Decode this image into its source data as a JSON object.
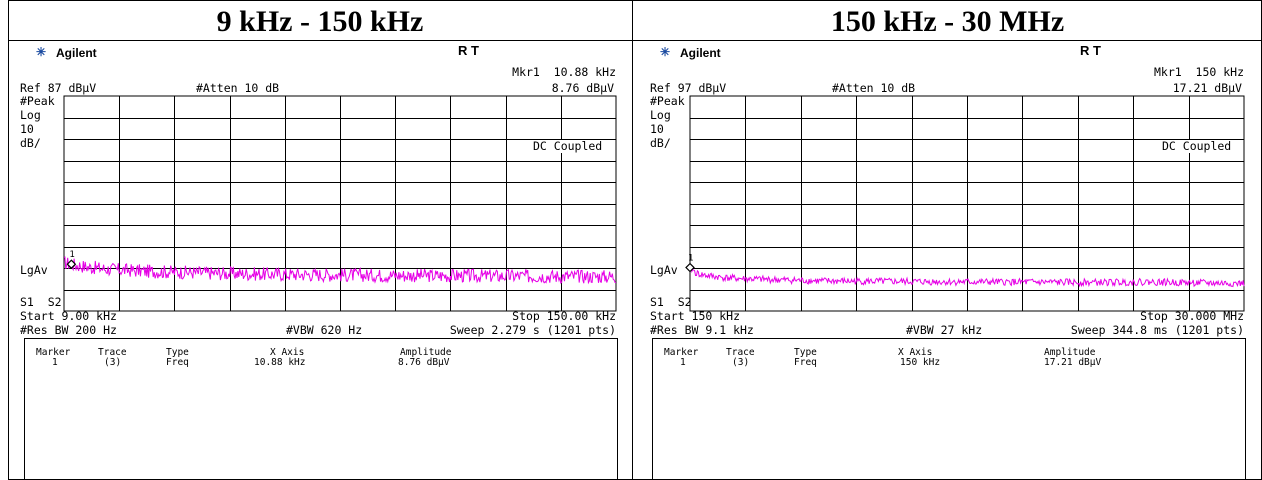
{
  "panels": [
    {
      "title": "9 kHz - 150 kHz",
      "brand": "Agilent",
      "mode_indicators": "R  T",
      "marker_readout": "Mkr1  10.88 kHz",
      "marker_amplitude": "8.76 dBμV",
      "ref_level": "Ref 87 dBμV",
      "attenuation": "#Atten 10 dB",
      "detector": "#Peak",
      "scale_type": "Log",
      "scale_value": "10",
      "scale_unit": "dB/",
      "coupling": "DC Coupled",
      "averaging": "LgAv",
      "sweep_labels": "S1  S2",
      "start_freq": "Start 9.00 kHz",
      "stop_freq": "Stop 150.00 kHz",
      "rbw": "#Res BW 200 Hz",
      "vbw": "#VBW 620 Hz",
      "sweep": "Sweep 2.279 s (1201 pts)",
      "marker_table": {
        "headers": [
          "Marker",
          "Trace",
          "Type",
          "X Axis",
          "Amplitude"
        ],
        "row": [
          "1",
          "(3)",
          "Freq",
          "10.88 kHz",
          "8.76 dBμV"
        ]
      },
      "marker_label": "1"
    },
    {
      "title": "150 kHz - 30 MHz",
      "brand": "Agilent",
      "mode_indicators": "R  T",
      "marker_readout": "Mkr1  150 kHz",
      "marker_amplitude": "17.21 dBμV",
      "ref_level": "Ref 97 dBμV",
      "attenuation": "#Atten 10 dB",
      "detector": "#Peak",
      "scale_type": "Log",
      "scale_value": "10",
      "scale_unit": "dB/",
      "coupling": "DC Coupled",
      "averaging": "LgAv",
      "sweep_labels": "S1  S2",
      "start_freq": "Start 150 kHz",
      "stop_freq": "Stop 30.000 MHz",
      "rbw": "#Res BW 9.1 kHz",
      "vbw": "#VBW 27 kHz",
      "sweep": "Sweep 344.8 ms (1201 pts)",
      "marker_table": {
        "headers": [
          "Marker",
          "Trace",
          "Type",
          "X Axis",
          "Amplitude"
        ],
        "row": [
          "1",
          "(3)",
          "Freq",
          "150 kHz",
          "17.21 dBμV"
        ]
      },
      "marker_label": "1"
    }
  ],
  "chart_data": [
    {
      "type": "line",
      "title": "9 kHz - 150 kHz",
      "x_unit": "kHz",
      "y_unit": "dBμV",
      "xlim": [
        9.0,
        150.0
      ],
      "ylim": [
        -13,
        87
      ],
      "grid": true,
      "trace_color": "#e600e6",
      "series": [
        {
          "x": [
            9.0,
            10.88,
            15,
            20,
            30,
            40,
            50,
            60,
            70,
            80,
            90,
            100,
            110,
            120,
            130,
            140,
            150
          ],
          "values": [
            9.5,
            8.76,
            7.5,
            6.5,
            5.5,
            5.0,
            4.5,
            4.2,
            4.0,
            3.8,
            3.6,
            3.5,
            3.4,
            3.3,
            3.2,
            3.1,
            3.0
          ]
        }
      ],
      "marker": {
        "x": 10.88,
        "y": 8.76
      }
    },
    {
      "type": "line",
      "title": "150 kHz - 30 MHz",
      "x_unit": "MHz",
      "y_unit": "dBμV",
      "xlim": [
        0.15,
        30.0
      ],
      "ylim": [
        -3,
        97
      ],
      "grid": true,
      "trace_color": "#e600e6",
      "series": [
        {
          "x": [
            0.15,
            0.5,
            1,
            2,
            3,
            5,
            7,
            10,
            13,
            16,
            19,
            22,
            25,
            28,
            30
          ],
          "values": [
            17.21,
            14.5,
            13.5,
            12.5,
            12.0,
            11.5,
            11.0,
            10.8,
            10.6,
            10.5,
            10.4,
            10.3,
            10.5,
            10.0,
            9.8
          ]
        }
      ],
      "marker": {
        "x": 0.15,
        "y": 17.21
      }
    }
  ]
}
